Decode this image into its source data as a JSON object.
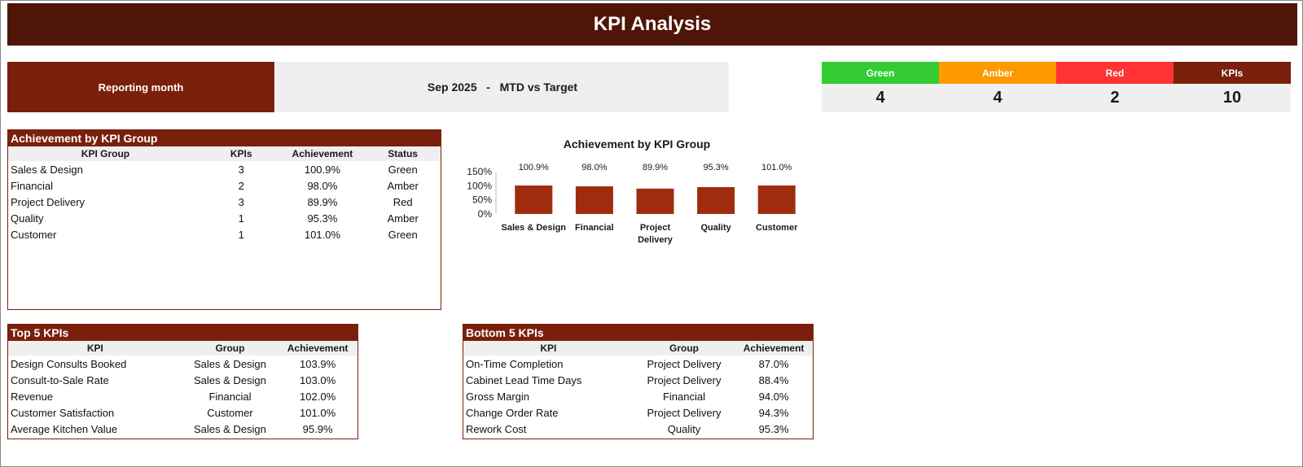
{
  "header": {
    "title": "KPI Analysis"
  },
  "reporting": {
    "label": "Reporting month",
    "month": "Sep 2025",
    "separator": "-",
    "mode": "MTD vs Target"
  },
  "status_summary": [
    {
      "label": "Green",
      "value": "4",
      "color": "#33cc33"
    },
    {
      "label": "Amber",
      "value": "4",
      "color": "#ff9900"
    },
    {
      "label": "Red",
      "value": "2",
      "color": "#ff3333"
    },
    {
      "label": "KPIs",
      "value": "10",
      "color": "#7a1f0c"
    }
  ],
  "group_table": {
    "title": "Achievement by KPI Group",
    "columns": [
      "KPI Group",
      "KPIs",
      "Achievement",
      "Status"
    ],
    "rows": [
      [
        "Sales & Design",
        "3",
        "100.9%",
        "Green"
      ],
      [
        "Financial",
        "2",
        "98.0%",
        "Amber"
      ],
      [
        "Project Delivery",
        "3",
        "89.9%",
        "Red"
      ],
      [
        "Quality",
        "1",
        "95.3%",
        "Amber"
      ],
      [
        "Customer",
        "1",
        "101.0%",
        "Green"
      ]
    ]
  },
  "chart_data": {
    "type": "bar",
    "title": "Achievement by KPI Group",
    "categories": [
      "Sales & Design",
      "Financial",
      "Project Delivery",
      "Quality",
      "Customer"
    ],
    "values": [
      100.9,
      98.0,
      89.9,
      95.3,
      101.0
    ],
    "data_labels": [
      "100.9%",
      "98.0%",
      "89.9%",
      "95.3%",
      "101.0%"
    ],
    "yticks": [
      "0%",
      "50%",
      "100%",
      "150%"
    ],
    "ylim": [
      0,
      150
    ],
    "bar_color": "#a02c10",
    "grid": false,
    "legend": "none"
  },
  "top5": {
    "title": "Top 5 KPIs",
    "columns": [
      "KPI",
      "Group",
      "Achievement"
    ],
    "rows": [
      [
        "Design Consults Booked",
        "Sales & Design",
        "103.9%"
      ],
      [
        "Consult-to-Sale Rate",
        "Sales & Design",
        "103.0%"
      ],
      [
        "Revenue",
        "Financial",
        "102.0%"
      ],
      [
        "Customer Satisfaction",
        "Customer",
        "101.0%"
      ],
      [
        "Average Kitchen Value",
        "Sales & Design",
        "95.9%"
      ]
    ]
  },
  "bottom5": {
    "title": "Bottom 5 KPIs",
    "columns": [
      "KPI",
      "Group",
      "Achievement"
    ],
    "rows": [
      [
        "On-Time Completion",
        "Project Delivery",
        "87.0%"
      ],
      [
        "Cabinet Lead Time Days",
        "Project Delivery",
        "88.4%"
      ],
      [
        "Gross Margin",
        "Financial",
        "94.0%"
      ],
      [
        "Change Order Rate",
        "Project Delivery",
        "94.3%"
      ],
      [
        "Rework Cost",
        "Quality",
        "95.3%"
      ]
    ]
  }
}
